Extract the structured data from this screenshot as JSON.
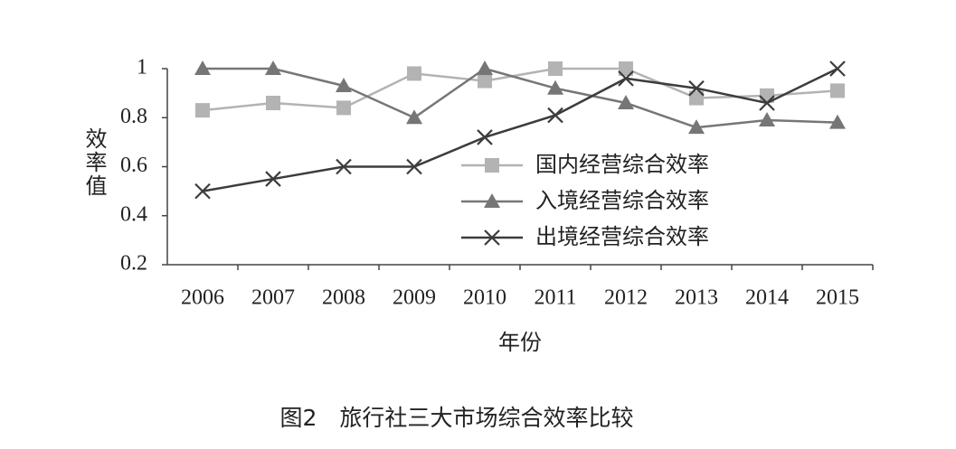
{
  "chart_data": {
    "type": "line",
    "caption": "图2　旅行社三大市场综合效率比较",
    "x_label": "年份",
    "y_label": "效率值",
    "categories": [
      "2006",
      "2007",
      "2008",
      "2009",
      "2010",
      "2011",
      "2012",
      "2013",
      "2014",
      "2015"
    ],
    "series": [
      {
        "name": "国内经营综合效率",
        "color": "#b3b3b3",
        "marker": "square",
        "values": [
          0.83,
          0.86,
          0.84,
          0.98,
          0.95,
          1,
          1,
          0.88,
          0.89,
          0.91
        ]
      },
      {
        "name": "入境经营综合效率",
        "color": "#767676",
        "marker": "triangle",
        "values": [
          1,
          1,
          0.93,
          0.8,
          1,
          0.92,
          0.86,
          0.76,
          0.79,
          0.78
        ]
      },
      {
        "name": "出境经营综合效率",
        "color": "#3c3c3c",
        "marker": "x",
        "values": [
          0.5,
          0.55,
          0.6,
          0.6,
          0.72,
          0.81,
          0.96,
          0.92,
          0.86,
          1
        ]
      }
    ],
    "ylim": [
      0.2,
      1
    ],
    "yticks": [
      0.2,
      0.4,
      0.6,
      0.8,
      1
    ],
    "grid": false
  }
}
